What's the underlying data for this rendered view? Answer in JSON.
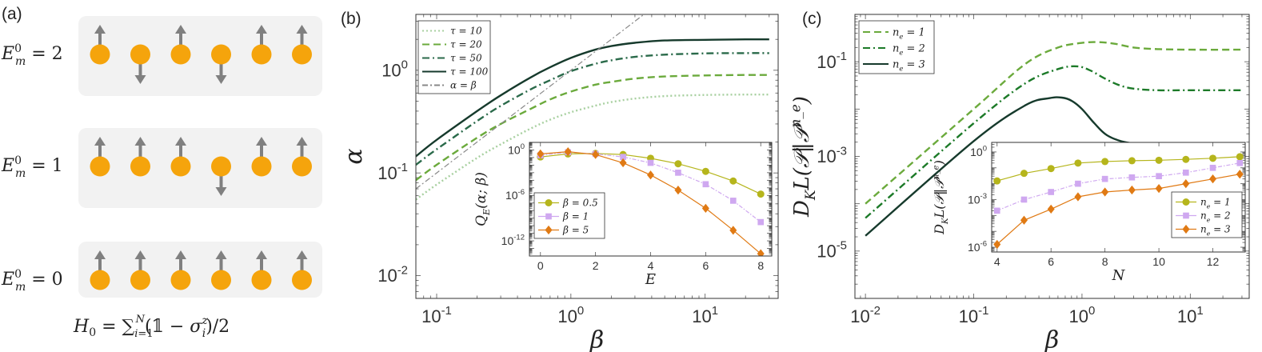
{
  "panel_a": {
    "label": "(a)",
    "rows": [
      {
        "energy_label": "E_m^0 = 2",
        "spins": [
          "up",
          "down",
          "up",
          "down",
          "up",
          "up"
        ]
      },
      {
        "energy_label": "E_m^0 = 1",
        "spins": [
          "up",
          "up",
          "up",
          "down",
          "up",
          "up"
        ]
      },
      {
        "energy_label": "E_m^0 = 0",
        "spins": [
          "up",
          "up",
          "up",
          "up",
          "up",
          "up"
        ]
      }
    ],
    "hamiltonian": "H_0 = Σ_{i=1}^{N} (𝟙 − σ_i^z)/2",
    "colors": {
      "spin": "#F5A40C",
      "arrow": "#808080",
      "box": "#F2F2F2"
    }
  },
  "chart_data": [
    {
      "id": "b-main",
      "label": "(b)",
      "type": "line",
      "xscale": "log",
      "yscale": "log",
      "xlabel": "β",
      "ylabel": "α",
      "xlim": [
        0.07,
        35
      ],
      "ylim": [
        0.006,
        3.5
      ],
      "xticks": [
        "10^-1",
        "10^0",
        "10^1"
      ],
      "yticks": [
        "10^-2",
        "10^-1",
        "10^0"
      ],
      "legend_position": "top-left",
      "series": [
        {
          "name": "τ = 10",
          "color": "#A8D0A0",
          "dash": "dotted",
          "x": [
            0.07,
            0.1,
            0.2,
            0.3,
            0.5,
            0.7,
            1,
            1.5,
            2,
            3,
            5,
            10,
            20,
            30
          ],
          "y": [
            0.055,
            0.077,
            0.14,
            0.19,
            0.27,
            0.33,
            0.39,
            0.45,
            0.49,
            0.53,
            0.56,
            0.575,
            0.58,
            0.58
          ]
        },
        {
          "name": "τ = 20",
          "color": "#6BAA3C",
          "dash": "dashed",
          "x": [
            0.07,
            0.1,
            0.2,
            0.3,
            0.5,
            0.7,
            1,
            1.5,
            2,
            3,
            5,
            10,
            20,
            30
          ],
          "y": [
            0.085,
            0.12,
            0.22,
            0.3,
            0.42,
            0.52,
            0.62,
            0.72,
            0.77,
            0.83,
            0.87,
            0.89,
            0.9,
            0.9
          ]
        },
        {
          "name": "τ = 50",
          "color": "#2A6A4A",
          "dash": "dashdot",
          "x": [
            0.07,
            0.1,
            0.2,
            0.3,
            0.5,
            0.7,
            1,
            1.5,
            2,
            3,
            5,
            10,
            20,
            30
          ],
          "y": [
            0.12,
            0.17,
            0.32,
            0.45,
            0.65,
            0.8,
            0.98,
            1.15,
            1.25,
            1.35,
            1.42,
            1.46,
            1.47,
            1.47
          ]
        },
        {
          "name": "τ = 100",
          "color": "#163A2C",
          "dash": "solid",
          "x": [
            0.07,
            0.1,
            0.2,
            0.3,
            0.5,
            0.7,
            1,
            1.5,
            2,
            3,
            5,
            10,
            20,
            30
          ],
          "y": [
            0.145,
            0.21,
            0.4,
            0.57,
            0.85,
            1.07,
            1.32,
            1.58,
            1.72,
            1.85,
            1.95,
            1.98,
            2.0,
            2.0
          ]
        },
        {
          "name": "α = β",
          "color": "#888888",
          "dash": "dashdotgray",
          "x": [
            0.07,
            3.6
          ],
          "y": [
            0.07,
            3.6
          ]
        }
      ]
    },
    {
      "id": "b-inset",
      "type": "line",
      "xscale": "linear",
      "yscale": "log",
      "xlabel": "E",
      "ylabel": "Q_E(α; β)",
      "xlim": [
        -0.4,
        8.4
      ],
      "ylim": [
        1e-14,
        10
      ],
      "xticks": [
        "0",
        "2",
        "4",
        "6",
        "8"
      ],
      "yticks": [
        "10^-12",
        "10^-6",
        "10^0"
      ],
      "legend_position": "bottom-left",
      "series": [
        {
          "name": "β = 0.5",
          "color": "#B5B51C",
          "marker": "circle",
          "x": [
            0,
            1,
            2,
            3,
            4,
            5,
            6,
            7,
            8
          ],
          "y": [
            0.12,
            0.3,
            0.35,
            0.25,
            0.08,
            0.015,
            0.0015,
            8e-05,
            1.5e-06
          ]
        },
        {
          "name": "β = 1",
          "color": "#CFA8F0",
          "marker": "square",
          "x": [
            0,
            1,
            2,
            3,
            4,
            5,
            6,
            7,
            8
          ],
          "y": [
            0.2,
            0.5,
            0.3,
            0.12,
            0.02,
            0.001,
            3e-05,
            2e-07,
            3e-10
          ]
        },
        {
          "name": "β = 5",
          "color": "#E07A14",
          "marker": "diamond",
          "x": [
            0,
            1,
            2,
            3,
            4,
            5,
            6,
            7,
            8
          ],
          "y": [
            0.3,
            0.6,
            0.25,
            0.02,
            0.0005,
            5e-06,
            2e-08,
            2.5e-11,
            2e-14
          ]
        }
      ]
    },
    {
      "id": "c-main",
      "label": "(c)",
      "type": "line",
      "xscale": "log",
      "yscale": "log",
      "xlabel": "β",
      "ylabel": "D_KL(𝒫‖𝒫^{n_e})",
      "xlim": [
        0.008,
        35
      ],
      "ylim": [
        1e-06,
        1
      ],
      "xticks": [
        "10^-2",
        "10^-1",
        "10^0",
        "10^1"
      ],
      "yticks": [
        "10^-5",
        "10^-3",
        "10^-1"
      ],
      "legend_position": "top-left",
      "series": [
        {
          "name": "n_e = 1",
          "color": "#6BAA3C",
          "dash": "dashed",
          "x": [
            0.01,
            0.1,
            0.3,
            0.6,
            1,
            1.4,
            2,
            3,
            5,
            10,
            30
          ],
          "y": [
            0.0001,
            0.01,
            0.09,
            0.2,
            0.25,
            0.26,
            0.24,
            0.2,
            0.185,
            0.18,
            0.18
          ]
        },
        {
          "name": "n_e = 2",
          "color": "#1C7A28",
          "dash": "dashdot",
          "x": [
            0.01,
            0.1,
            0.3,
            0.6,
            0.9,
            1.2,
            1.6,
            2.2,
            3,
            5,
            10,
            30
          ],
          "y": [
            5e-05,
            0.005,
            0.035,
            0.07,
            0.08,
            0.065,
            0.045,
            0.032,
            0.027,
            0.025,
            0.025,
            0.025
          ]
        },
        {
          "name": "n_e = 3",
          "color": "#163A2C",
          "dash": "solid",
          "x": [
            0.01,
            0.1,
            0.3,
            0.5,
            0.65,
            0.8,
            1,
            1.3,
            1.7,
            2.5,
            4,
            10,
            30
          ],
          "y": [
            2.1e-05,
            0.0021,
            0.012,
            0.017,
            0.0175,
            0.015,
            0.01,
            0.005,
            0.0028,
            0.002,
            0.0018,
            0.0017,
            0.0017
          ]
        }
      ]
    },
    {
      "id": "c-inset",
      "type": "line",
      "xscale": "linear",
      "yscale": "log",
      "xlabel": "N",
      "ylabel": "D_KL(𝒫‖𝒫^{n_e})",
      "xlim": [
        3.8,
        13.2
      ],
      "ylim": [
        5e-07,
        4
      ],
      "xticks": [
        "4",
        "6",
        "8",
        "10",
        "12"
      ],
      "yticks": [
        "10^-6",
        "10^-3",
        "10^0"
      ],
      "legend_position": "bottom-right",
      "series": [
        {
          "name": "n_e = 1",
          "color": "#B5B51C",
          "marker": "circle",
          "x": [
            4,
            5,
            6,
            7,
            8,
            9,
            10,
            11,
            12,
            13
          ],
          "y": [
            0.015,
            0.045,
            0.09,
            0.2,
            0.25,
            0.28,
            0.3,
            0.34,
            0.4,
            0.5
          ]
        },
        {
          "name": "n_e = 2",
          "color": "#CFA8F0",
          "marker": "square",
          "x": [
            4,
            5,
            6,
            7,
            8,
            9,
            10,
            11,
            12,
            13
          ],
          "y": [
            0.0002,
            0.001,
            0.003,
            0.01,
            0.02,
            0.025,
            0.03,
            0.05,
            0.1,
            0.2
          ]
        },
        {
          "name": "n_e = 3",
          "color": "#E07A14",
          "marker": "diamond",
          "x": [
            4,
            5,
            6,
            7,
            8,
            9,
            10,
            11,
            12,
            13
          ],
          "y": [
            1.5e-06,
            5e-05,
            0.00025,
            0.0015,
            0.003,
            0.004,
            0.005,
            0.01,
            0.02,
            0.04
          ]
        }
      ]
    }
  ]
}
